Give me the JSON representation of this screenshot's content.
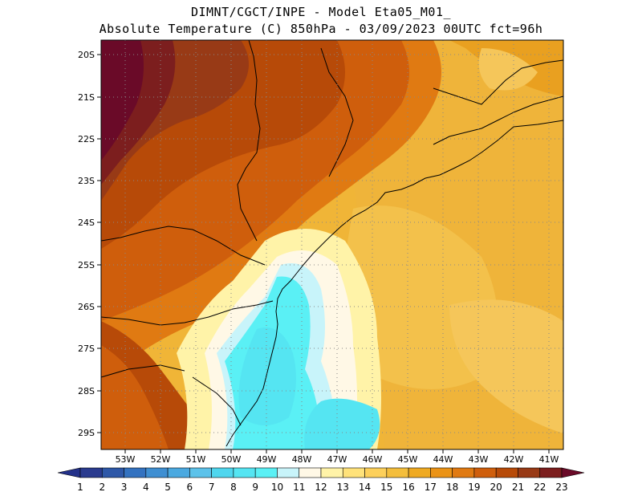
{
  "title": {
    "line1": "DIMNT/CGCT/INPE -  Model Eta05_M01_",
    "line2": "Absolute Temperature (C) 850hPa -  03/09/2023 00UTC fct=96h"
  },
  "map": {
    "lat_labels": [
      "20S",
      "21S",
      "22S",
      "23S",
      "24S",
      "25S",
      "26S",
      "27S",
      "28S",
      "29S"
    ],
    "lon_labels": [
      "53W",
      "52W",
      "51W",
      "50W",
      "49W",
      "48W",
      "47W",
      "46W",
      "45W",
      "44W",
      "43W",
      "42W",
      "41W"
    ],
    "grid_lines": "dotted"
  },
  "colorbar": {
    "labels": [
      "1",
      "2",
      "3",
      "4",
      "5",
      "6",
      "7",
      "8",
      "9",
      "10",
      "11",
      "12",
      "13",
      "14",
      "15",
      "16",
      "17",
      "18",
      "19",
      "20",
      "21",
      "22",
      "23"
    ],
    "colors": [
      "#2a3b8f",
      "#2e58a8",
      "#3372c0",
      "#3f8fd2",
      "#4ba9e0",
      "#5cc2ea",
      "#4fd6ee",
      "#55e5f2",
      "#5af0f5",
      "#c8f4fa",
      "#fff8e6",
      "#fff3a8",
      "#ffe27a",
      "#fdd05a",
      "#f4be3c",
      "#efaa22",
      "#eb9316",
      "#e07a12",
      "#cf5e0c",
      "#b74a08",
      "#983a16",
      "#7c1e1e",
      "#6a0a28"
    ]
  }
}
